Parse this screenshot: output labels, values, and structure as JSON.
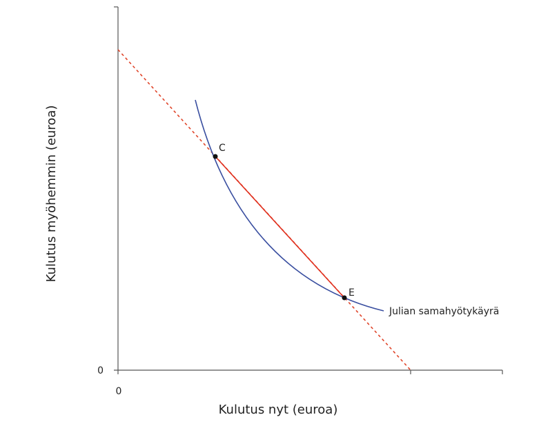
{
  "axes": {
    "x_label": "Kulutus nyt (euroa)",
    "y_label": "Kulutus myöhemmin (euroa)",
    "x_origin": "0",
    "y_origin": "0"
  },
  "points": [
    {
      "label": "C"
    },
    {
      "label": "E"
    }
  ],
  "curve": {
    "label": "Julian samahyötykäyrä"
  }
}
